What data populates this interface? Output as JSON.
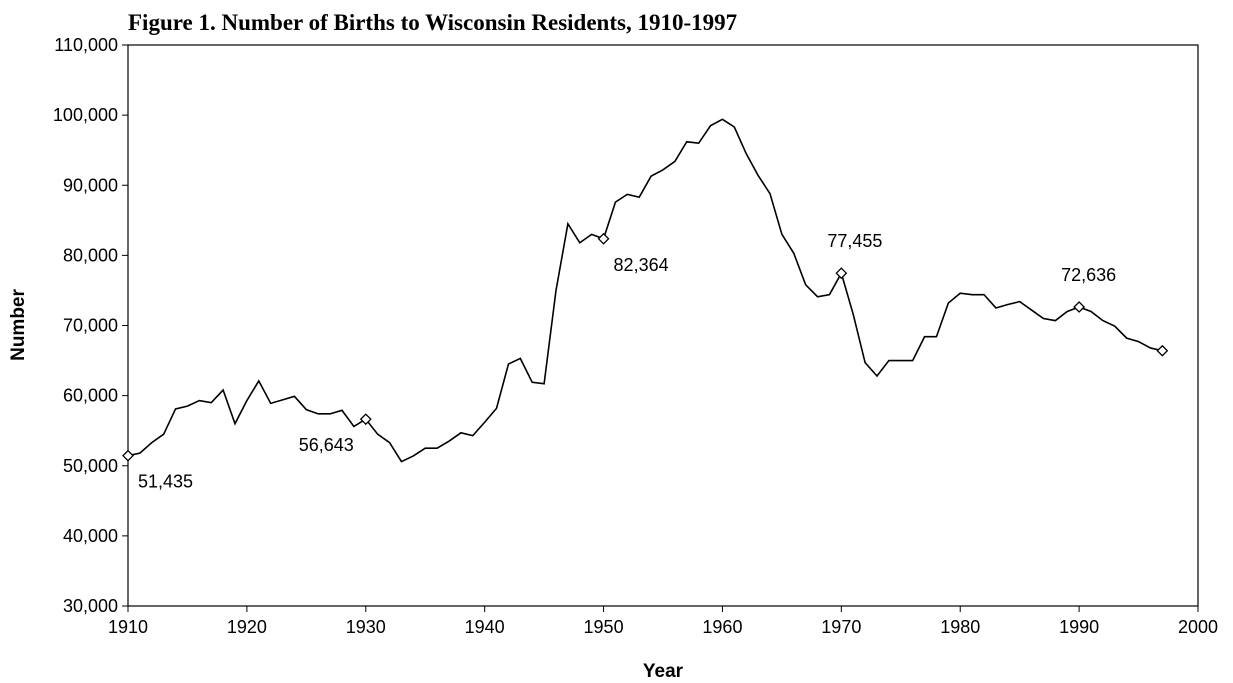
{
  "chart_data": {
    "type": "line",
    "title": "Figure 1.  Number of Births to Wisconsin Residents, 1910-1997",
    "x_label": "Year",
    "y_label": "Number",
    "x": [
      1910,
      1911,
      1912,
      1913,
      1914,
      1915,
      1916,
      1917,
      1918,
      1919,
      1920,
      1921,
      1922,
      1923,
      1924,
      1925,
      1926,
      1927,
      1928,
      1929,
      1930,
      1931,
      1932,
      1933,
      1934,
      1935,
      1936,
      1937,
      1938,
      1939,
      1940,
      1941,
      1942,
      1943,
      1944,
      1945,
      1946,
      1947,
      1948,
      1949,
      1950,
      1951,
      1952,
      1953,
      1954,
      1955,
      1956,
      1957,
      1958,
      1959,
      1960,
      1961,
      1962,
      1963,
      1964,
      1965,
      1966,
      1967,
      1968,
      1969,
      1970,
      1971,
      1972,
      1973,
      1974,
      1975,
      1976,
      1977,
      1978,
      1979,
      1980,
      1981,
      1982,
      1983,
      1984,
      1985,
      1986,
      1987,
      1988,
      1989,
      1990,
      1991,
      1992,
      1993,
      1994,
      1995,
      1996,
      1997
    ],
    "series": [
      {
        "name": "Births",
        "color": "#000000",
        "values": [
          51435,
          51800,
          53300,
          54500,
          58100,
          58500,
          59300,
          59000,
          60800,
          56000,
          59300,
          62100,
          58900,
          59400,
          59900,
          58000,
          57400,
          57400,
          57900,
          55600,
          56643,
          54500,
          53300,
          50600,
          51400,
          52500,
          52500,
          53500,
          54700,
          54300,
          56200,
          58200,
          64500,
          65300,
          61900,
          61700,
          75000,
          84500,
          81800,
          83000,
          82364,
          87600,
          88700,
          88300,
          91300,
          92200,
          93400,
          96200,
          96000,
          98500,
          99400,
          98300,
          94500,
          91400,
          88800,
          83000,
          80300,
          75800,
          74100,
          74400,
          77455,
          71600,
          64700,
          62800,
          65000,
          65000,
          65000,
          68400,
          68400,
          73200,
          74600,
          74400,
          74400,
          72500,
          73000,
          73400,
          72200,
          71000,
          70700,
          72000,
          72636,
          72000,
          70700,
          69900,
          68200,
          67700,
          66800,
          66400
        ],
        "value_labels": [
          "51,435",
          null,
          null,
          null,
          null,
          null,
          null,
          null,
          null,
          null,
          null,
          null,
          null,
          null,
          null,
          null,
          null,
          null,
          null,
          null,
          "56,643",
          null,
          null,
          null,
          null,
          null,
          null,
          null,
          null,
          null,
          null,
          null,
          null,
          null,
          null,
          null,
          null,
          null,
          null,
          null,
          "82,364",
          null,
          null,
          null,
          null,
          null,
          null,
          null,
          null,
          null,
          null,
          null,
          null,
          null,
          null,
          null,
          null,
          null,
          null,
          null,
          "77,455",
          null,
          null,
          null,
          null,
          null,
          null,
          null,
          null,
          null,
          null,
          null,
          null,
          null,
          null,
          null,
          null,
          null,
          null,
          null,
          "72,636",
          null,
          null,
          null,
          null,
          null,
          null,
          null
        ],
        "marker_x": [
          1910,
          1930,
          1950,
          1970,
          1990,
          1997
        ]
      }
    ],
    "xlim": [
      1910,
      2000
    ],
    "xticks": [
      1910,
      1920,
      1930,
      1940,
      1950,
      1960,
      1970,
      1980,
      1990,
      2000
    ],
    "ylim": [
      30000,
      110000
    ],
    "yticks": [
      {
        "value": 30000,
        "label": "30,000"
      },
      {
        "value": 40000,
        "label": "40,000"
      },
      {
        "value": 50000,
        "label": "50,000"
      },
      {
        "value": 60000,
        "label": "60,000"
      },
      {
        "value": 70000,
        "label": "70,000"
      },
      {
        "value": 80000,
        "label": "80,000"
      },
      {
        "value": 90000,
        "label": "90,000"
      },
      {
        "value": 100000,
        "label": "100,000"
      },
      {
        "value": 110000,
        "label": "110,000"
      }
    ],
    "grid": false
  }
}
